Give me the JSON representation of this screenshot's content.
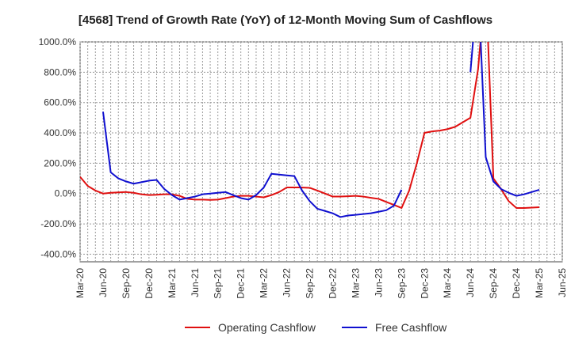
{
  "chart_data": {
    "type": "line",
    "title": "[4568]  Trend of Growth Rate (YoY) of 12-Month Moving Sum of Cashflows",
    "xlabel": "",
    "ylabel": "",
    "ylim": [
      -450,
      1000
    ],
    "yticks": [
      1000,
      800,
      600,
      400,
      200,
      0,
      -200,
      -400
    ],
    "ytick_labels": [
      "1000.0%",
      "800.0%",
      "600.0%",
      "400.0%",
      "200.0%",
      "0.0%",
      "-200.0%",
      "-400.0%"
    ],
    "xtick_labels": [
      "Mar-20",
      "Jun-20",
      "Sep-20",
      "Dec-20",
      "Mar-21",
      "Jun-21",
      "Sep-21",
      "Dec-21",
      "Mar-22",
      "Jun-22",
      "Sep-22",
      "Dec-22",
      "Mar-23",
      "Jun-23",
      "Sep-23",
      "Dec-23",
      "Mar-24",
      "Jun-24",
      "Sep-24",
      "Dec-24",
      "Mar-25",
      "Jun-25"
    ],
    "grid": true,
    "legend_position": "bottom",
    "series": [
      {
        "name": "Operating Cashflow",
        "color": "#e01010",
        "x": [
          "Mar-20",
          "Apr-20",
          "May-20",
          "Jun-20",
          "Jul-20",
          "Aug-20",
          "Sep-20",
          "Oct-20",
          "Nov-20",
          "Dec-20",
          "Jan-21",
          "Feb-21",
          "Mar-21",
          "Apr-21",
          "May-21",
          "Jun-21",
          "Jul-21",
          "Aug-21",
          "Sep-21",
          "Oct-21",
          "Nov-21",
          "Dec-21",
          "Jan-22",
          "Feb-22",
          "Mar-22",
          "Apr-22",
          "May-22",
          "Jun-22",
          "Jul-22",
          "Aug-22",
          "Sep-22",
          "Oct-22",
          "Nov-22",
          "Dec-22",
          "Jan-23",
          "Feb-23",
          "Mar-23",
          "Apr-23",
          "May-23",
          "Jun-23",
          "Jul-23",
          "Aug-23",
          "Sep-23",
          "Oct-23",
          "Nov-23",
          "Dec-23",
          "Jan-24",
          "Feb-24",
          "Mar-24",
          "Apr-24",
          "May-24",
          "Jun-24",
          "Jul-24",
          "Aug-24",
          "Aug-24",
          "Sep-24",
          "Oct-24",
          "Nov-24",
          "Dec-24",
          "Jan-25",
          "Feb-25",
          "Mar-25"
        ],
        "values": [
          110,
          50,
          20,
          0,
          5,
          8,
          10,
          5,
          -5,
          -10,
          -8,
          -5,
          -5,
          -15,
          -35,
          -40,
          -40,
          -42,
          -40,
          -30,
          -20,
          -15,
          -15,
          -20,
          -25,
          -10,
          10,
          40,
          40,
          40,
          38,
          20,
          0,
          -20,
          -20,
          -18,
          -15,
          -20,
          -28,
          -35,
          -55,
          -75,
          -95,
          20,
          200,
          400,
          410,
          415,
          425,
          440,
          470,
          500,
          820,
          1400,
          1400,
          100,
          30,
          -50,
          -95,
          -95,
          -93,
          -90
        ]
      },
      {
        "name": "Free Cashflow",
        "color": "#1010d0",
        "x": [
          "Jun-20",
          "Jul-20",
          "Aug-20",
          "Sep-20",
          "Oct-20",
          "Nov-20",
          "Dec-20",
          "Jan-21",
          "Feb-21",
          "Mar-21",
          "Apr-21",
          "May-21",
          "Jun-21",
          "Jul-21",
          "Aug-21",
          "Sep-21",
          "Oct-21",
          "Nov-21",
          "Dec-21",
          "Jan-22",
          "Feb-22",
          "Mar-22",
          "Apr-22",
          "May-22",
          "Jun-22",
          "Jul-22",
          "Aug-22",
          "Sep-22",
          "Oct-22",
          "Nov-22",
          "Dec-22",
          "Jan-23",
          "Feb-23",
          "Mar-23",
          "Apr-23",
          "May-23",
          "Jun-23",
          "Jul-23",
          "Aug-23",
          "Sep-23"
        ],
        "values": [
          540,
          140,
          100,
          80,
          65,
          75,
          85,
          90,
          30,
          -10,
          -40,
          -30,
          -20,
          -5,
          0,
          5,
          10,
          -10,
          -30,
          -40,
          -10,
          40,
          130,
          125,
          120,
          115,
          20,
          -50,
          -100,
          -115,
          -130,
          -155,
          -145,
          -140,
          -135,
          -130,
          -120,
          -110,
          -80,
          25
        ]
      },
      {
        "name": "",
        "color": "#1010d0",
        "x": [
          "Jun-24",
          "Jul-24",
          "Aug-24",
          "Sep-24",
          "Oct-24",
          "Nov-24",
          "Dec-24",
          "Jan-25",
          "Feb-25",
          "Mar-25"
        ],
        "values": [
          800,
          1400,
          240,
          80,
          30,
          5,
          -15,
          -5,
          10,
          25
        ]
      }
    ]
  }
}
